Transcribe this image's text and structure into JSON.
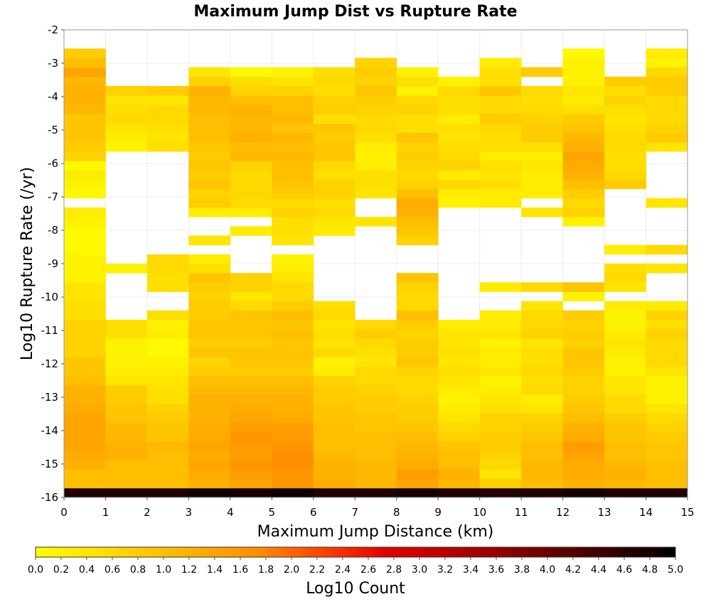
{
  "chart_data": {
    "type": "heatmap",
    "title": "Maximum Jump Dist vs Rupture Rate",
    "xlabel": "Maximum Jump Distance (km)",
    "ylabel": "Log10 Rupture Rate (/yr)",
    "xlim": [
      0,
      15
    ],
    "ylim": [
      -16,
      -2
    ],
    "x_ticks": [
      "0",
      "1",
      "2",
      "3",
      "4",
      "5",
      "6",
      "7",
      "8",
      "9",
      "10",
      "11",
      "12",
      "13",
      "14",
      "15"
    ],
    "y_ticks": [
      "-2",
      "-3",
      "-4",
      "-5",
      "-6",
      "-7",
      "-8",
      "-9",
      "-10",
      "-11",
      "-12",
      "-13",
      "-14",
      "-15",
      "-16"
    ],
    "x_bin_width": 1,
    "y_bin_height": 0.28,
    "y_bin_start": -16,
    "colorbar": {
      "label": "Log10 Count",
      "range": [
        0,
        5
      ],
      "ticks": [
        "0.0",
        "0.2",
        "0.4",
        "0.6",
        "0.8",
        "1.0",
        "1.2",
        "1.4",
        "1.6",
        "1.8",
        "2.0",
        "2.2",
        "2.4",
        "2.6",
        "2.8",
        "3.0",
        "3.2",
        "3.4",
        "3.6",
        "3.8",
        "4.0",
        "4.2",
        "4.4",
        "4.6",
        "4.8",
        "5.0"
      ]
    },
    "columns": [
      [
        4.7,
        1.0,
        1.0,
        1.2,
        1.3,
        1.4,
        1.4,
        1.4,
        1.4,
        1.3,
        1.2,
        1.2,
        1.0,
        0.9,
        0.9,
        0.7,
        0.7,
        0.7,
        0.7,
        0.5,
        0.5,
        0.4,
        0.4,
        0.2,
        0.2,
        0.2,
        0.1,
        0.1,
        0.1,
        0.2,
        0.3,
        null,
        0.1,
        0.2,
        0.3,
        0.1,
        0.7,
        0.8,
        0.9,
        0.9,
        0.9,
        1.1,
        1.2,
        1.2,
        1.1,
        1.4,
        1.0,
        0.8
      ],
      [
        4.7,
        1.0,
        1.0,
        1.0,
        1.2,
        1.2,
        1.1,
        1.1,
        0.9,
        0.9,
        0.8,
        0.8,
        0.4,
        0.3,
        0.2,
        0.2,
        0.2,
        0.5,
        0.5,
        null,
        null,
        null,
        null,
        null,
        0.2,
        null,
        null,
        null,
        null,
        null,
        null,
        null,
        null,
        null,
        null,
        null,
        null,
        0.2,
        0.3,
        0.4,
        0.6,
        0.5,
        0.4,
        0.7,
        null,
        null,
        null,
        null
      ],
      [
        4.7,
        1.0,
        1.0,
        1.0,
        1.0,
        1.1,
        0.9,
        0.9,
        0.8,
        0.7,
        0.5,
        0.5,
        0.4,
        0.3,
        0.2,
        0.1,
        0.1,
        0.3,
        0.2,
        0.5,
        null,
        null,
        0.5,
        0.5,
        0.6,
        0.6,
        null,
        null,
        null,
        null,
        null,
        null,
        null,
        null,
        null,
        null,
        null,
        0.5,
        0.4,
        0.5,
        0.6,
        0.6,
        0.4,
        0.8,
        null,
        null,
        null,
        null
      ],
      [
        4.8,
        1.2,
        1.3,
        1.4,
        1.3,
        1.4,
        1.3,
        1.3,
        1.2,
        1.2,
        1.2,
        1.1,
        1.0,
        0.8,
        0.7,
        0.9,
        0.8,
        0.9,
        0.9,
        0.8,
        0.8,
        0.7,
        0.8,
        0.9,
        0.5,
        0.3,
        null,
        0.4,
        null,
        null,
        0.3,
        0.8,
        0.7,
        0.9,
        0.8,
        0.9,
        0.8,
        0.9,
        1.0,
        1.0,
        1.0,
        1.1,
        1.1,
        1.2,
        0.7,
        0.4,
        null,
        null
      ],
      [
        4.8,
        1.4,
        1.5,
        1.6,
        1.5,
        1.5,
        1.6,
        1.5,
        1.4,
        1.3,
        1.2,
        1.1,
        1.0,
        0.8,
        0.9,
        0.9,
        0.8,
        0.9,
        0.9,
        0.9,
        0.6,
        0.4,
        0.7,
        0.7,
        null,
        null,
        null,
        null,
        0.3,
        null,
        0.3,
        0.6,
        0.6,
        0.6,
        0.6,
        0.7,
        1.1,
        1.0,
        1.2,
        1.1,
        1.1,
        1.2,
        1.0,
        0.7,
        0.5,
        0.1,
        null,
        null
      ],
      [
        4.9,
        1.6,
        1.6,
        1.7,
        1.7,
        1.6,
        1.5,
        1.5,
        1.3,
        1.2,
        1.2,
        1.1,
        1.0,
        0.8,
        0.9,
        0.9,
        0.9,
        1.0,
        0.9,
        1.0,
        0.8,
        0.6,
        0.6,
        0.4,
        0.3,
        0.2,
        null,
        0.4,
        0.5,
        0.5,
        0.7,
        0.6,
        0.8,
        0.9,
        1.0,
        1.0,
        1.1,
        1.0,
        1.1,
        0.9,
        1.1,
        1.0,
        1.0,
        0.7,
        0.4,
        0.2,
        null,
        null
      ],
      [
        4.7,
        1.3,
        1.2,
        1.2,
        1.1,
        1.0,
        1.0,
        1.0,
        0.9,
        0.9,
        0.8,
        0.8,
        0.7,
        0.3,
        0.2,
        0.6,
        0.4,
        0.5,
        0.4,
        0.6,
        0.5,
        null,
        null,
        null,
        null,
        null,
        null,
        null,
        0.3,
        0.4,
        0.6,
        0.5,
        0.7,
        0.7,
        0.5,
        0.6,
        0.9,
        0.9,
        0.8,
        0.9,
        0.5,
        0.8,
        0.7,
        0.5,
        0.6,
        0.5,
        null,
        null
      ],
      [
        4.7,
        1.1,
        1.1,
        1.1,
        1.0,
        1.0,
        1.0,
        0.9,
        0.9,
        0.8,
        0.8,
        0.7,
        0.6,
        0.6,
        0.4,
        0.5,
        0.6,
        0.8,
        0.6,
        null,
        null,
        null,
        null,
        null,
        null,
        null,
        null,
        null,
        null,
        0.4,
        null,
        null,
        0.4,
        0.5,
        0.5,
        0.3,
        0.2,
        0.3,
        0.5,
        0.6,
        0.6,
        0.7,
        0.8,
        0.9,
        0.7,
        0.8,
        0.7,
        null
      ],
      [
        4.8,
        1.4,
        1.5,
        1.3,
        1.2,
        1.1,
        1.0,
        0.9,
        0.8,
        0.8,
        0.7,
        0.6,
        0.6,
        0.7,
        0.9,
        0.8,
        0.8,
        0.7,
        0.8,
        1.0,
        0.6,
        0.6,
        0.7,
        0.9,
        null,
        null,
        null,
        0.7,
        0.9,
        1.0,
        1.2,
        1.3,
        1.0,
        0.7,
        0.6,
        0.7,
        0.8,
        0.7,
        0.9,
        0.5,
        0.5,
        0.7,
        0.6,
        0.2,
        0.5,
        0.2,
        null,
        null
      ],
      [
        4.7,
        1.1,
        1.2,
        1.0,
        1.0,
        0.9,
        0.7,
        0.6,
        0.4,
        0.3,
        0.2,
        0.3,
        0.4,
        0.5,
        0.4,
        0.5,
        0.4,
        0.4,
        0.3,
        null,
        null,
        null,
        null,
        null,
        null,
        null,
        null,
        null,
        null,
        null,
        null,
        0.2,
        0.3,
        0.6,
        0.3,
        0.7,
        0.6,
        0.5,
        0.4,
        0.5,
        0.3,
        0.5,
        0.5,
        0.6,
        0.2,
        null,
        null,
        null
      ],
      [
        4.7,
        0.8,
        0.4,
        0.6,
        0.7,
        0.8,
        0.8,
        0.7,
        0.7,
        0.5,
        0.4,
        0.3,
        0.2,
        0.4,
        0.3,
        0.3,
        0.2,
        0.4,
        0.3,
        0.3,
        null,
        null,
        0.3,
        null,
        null,
        null,
        null,
        null,
        null,
        null,
        null,
        0.3,
        0.3,
        0.5,
        0.4,
        0.5,
        0.3,
        0.5,
        0.5,
        0.6,
        0.8,
        0.6,
        0.6,
        0.9,
        0.5,
        0.5,
        0.3,
        null
      ],
      [
        4.7,
        1.0,
        1.1,
        1.1,
        1.0,
        1.0,
        0.9,
        0.8,
        0.7,
        0.4,
        0.3,
        0.6,
        0.5,
        0.6,
        0.5,
        0.5,
        0.4,
        0.7,
        0.6,
        0.6,
        0.4,
        null,
        0.6,
        null,
        null,
        null,
        null,
        null,
        null,
        null,
        0.4,
        null,
        0.3,
        0.3,
        0.3,
        0.4,
        0.3,
        0.5,
        0.8,
        0.8,
        0.7,
        0.6,
        0.5,
        0.6,
        null,
        0.8,
        null,
        null
      ],
      [
        4.8,
        1.2,
        1.3,
        1.3,
        1.4,
        1.5,
        1.3,
        1.2,
        1.0,
        0.9,
        0.8,
        0.7,
        0.7,
        0.8,
        0.9,
        0.9,
        0.7,
        0.8,
        0.7,
        0.8,
        null,
        0.2,
        0.9,
        null,
        null,
        null,
        null,
        null,
        null,
        0.2,
        0.7,
        0.6,
        0.8,
        1.0,
        1.2,
        1.3,
        1.4,
        1.2,
        1.1,
        0.9,
        0.8,
        0.5,
        0.3,
        0.4,
        0.2,
        0.2,
        0.2,
        0.1
      ],
      [
        4.7,
        1.1,
        1.2,
        1.1,
        1.0,
        1.0,
        0.9,
        0.9,
        0.8,
        0.6,
        0.6,
        0.4,
        0.4,
        0.2,
        0.2,
        0.3,
        0.4,
        0.3,
        0.2,
        0.2,
        0.3,
        null,
        0.4,
        0.6,
        0.5,
        null,
        0.3,
        null,
        null,
        null,
        null,
        null,
        null,
        0.8,
        0.6,
        0.5,
        0.5,
        0.6,
        0.6,
        0.5,
        0.4,
        0.5,
        0.7,
        0.5,
        0.8,
        null,
        null,
        null
      ],
      [
        4.7,
        1.0,
        1.0,
        1.0,
        0.9,
        0.9,
        0.8,
        0.7,
        0.6,
        0.4,
        0.2,
        0.2,
        0.2,
        0.4,
        0.6,
        0.6,
        0.6,
        0.7,
        0.5,
        0.7,
        0.3,
        null,
        null,
        null,
        0.4,
        null,
        0.6,
        null,
        null,
        null,
        null,
        0.4,
        null,
        null,
        null,
        null,
        null,
        0.4,
        0.8,
        0.7,
        0.6,
        0.6,
        0.6,
        0.8,
        0.8,
        0.6,
        0.2,
        0.3
      ]
    ]
  }
}
